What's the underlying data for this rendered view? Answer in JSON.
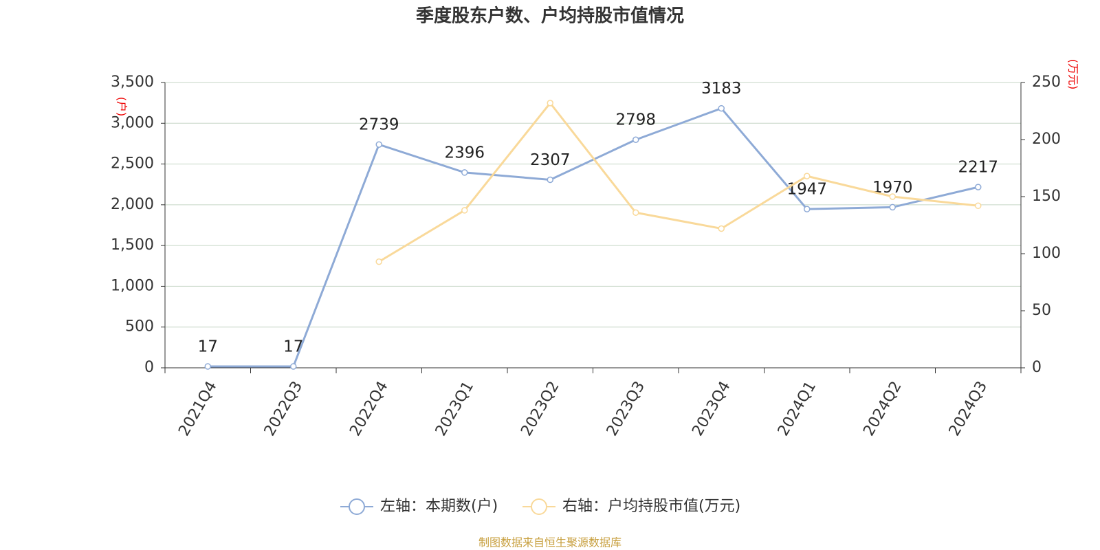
{
  "chart_data": {
    "type": "line",
    "title": "季度股东户数、户均持股市值情况",
    "categories": [
      "2021Q4",
      "2022Q3",
      "2022Q4",
      "2023Q1",
      "2023Q2",
      "2023Q3",
      "2023Q4",
      "2024Q1",
      "2024Q2",
      "2024Q3"
    ],
    "series": [
      {
        "name": "左轴：本期数(户)",
        "color": "#8eaad6",
        "values": [
          17,
          17,
          2739,
          2396,
          2307,
          2798,
          3183,
          1947,
          1970,
          2217
        ]
      },
      {
        "name": "右轴：户均持股市值(万元)",
        "color": "#f9d99a",
        "axis": "y2",
        "values": [
          null,
          null,
          93,
          138,
          232,
          136,
          122,
          168,
          150,
          142
        ]
      }
    ],
    "y_label": "(户)",
    "y2_label": "(万元)",
    "ylim": [
      0,
      3500
    ],
    "yticks": [
      0,
      500,
      {
        "value": 1000,
        "label": "1,000"
      },
      {
        "value": 1500,
        "label": "1,500"
      },
      {
        "value": 2000,
        "label": "2,000"
      },
      {
        "value": 2500,
        "label": "2,500"
      },
      {
        "value": 3000,
        "label": "3,000"
      },
      {
        "value": 3500,
        "label": "3,500"
      }
    ],
    "y2lim": [
      0,
      250
    ],
    "y2ticks": [
      0,
      50,
      100,
      150,
      200,
      250
    ],
    "grid": true,
    "legend": "bottom",
    "source": "制图数据来自恒生聚源数据库"
  }
}
